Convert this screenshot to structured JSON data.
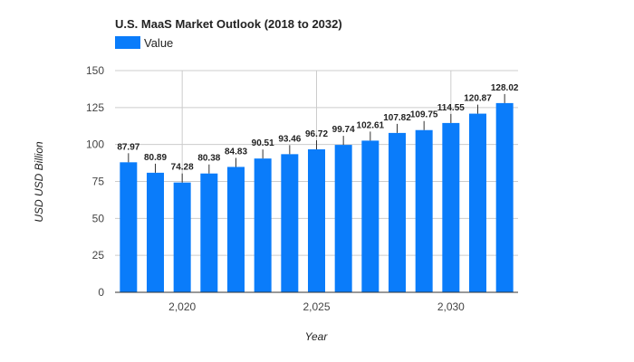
{
  "chart_data": {
    "type": "bar",
    "title": "U.S. MaaS Market Outlook (2018 to 2032)",
    "legend": {
      "entries": [
        "Value"
      ],
      "placement": "top-left"
    },
    "x": [
      2018,
      2019,
      2020,
      2021,
      2022,
      2023,
      2024,
      2025,
      2026,
      2027,
      2028,
      2029,
      2030,
      2031,
      2032
    ],
    "x_ticks": [
      2020,
      2025,
      2030
    ],
    "x_tick_labels": [
      "2,020",
      "2,025",
      "2,030"
    ],
    "series": [
      {
        "name": "Value",
        "values": [
          87.97,
          80.89,
          74.28,
          80.38,
          84.83,
          90.51,
          93.46,
          96.72,
          99.74,
          102.61,
          107.82,
          109.75,
          114.55,
          120.87,
          128.02
        ]
      }
    ],
    "data_labels": [
      "87.97",
      "80.89",
      "74.28",
      "80.38",
      "84.83",
      "90.51",
      "93.46",
      "96.72",
      "99.74",
      "102.61",
      "107.82",
      "109.75",
      "114.55",
      "120.87",
      "128.02"
    ],
    "xlabel": "Year",
    "ylabel": "USD USD Billion",
    "ylim": [
      0,
      150
    ],
    "y_ticks": [
      0,
      25,
      50,
      75,
      100,
      125,
      150
    ],
    "grid": true,
    "colors": {
      "bar": "#0a7cfa",
      "grid": "#cccccc",
      "baseline": "#333333"
    }
  }
}
